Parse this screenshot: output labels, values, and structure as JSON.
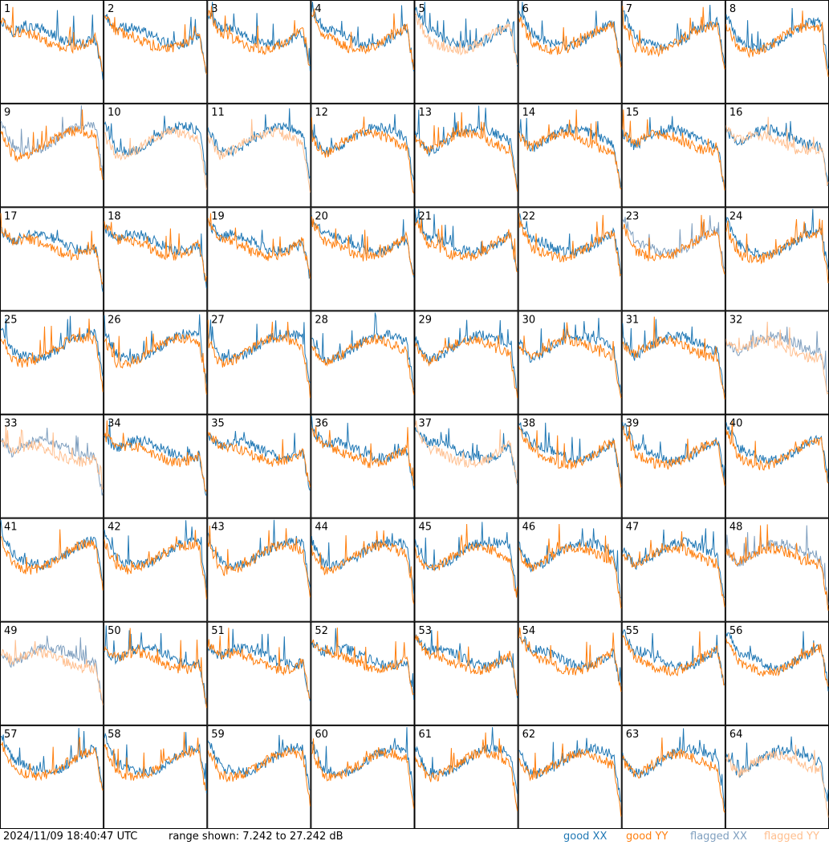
{
  "footer": {
    "timestamp": "2024/11/09 18:40:47 UTC",
    "range_text": "range shown: 7.242 to 27.242 dB"
  },
  "colors": {
    "good_xx": "#1f77b4",
    "good_yy": "#ff7f0e",
    "flagged_xx": "#7f9fbf",
    "flagged_yy": "#ffbf8f"
  },
  "chart_data": {
    "type": "line",
    "title": "",
    "xlabel": "",
    "ylabel": "",
    "ylim": [
      7.242,
      27.242
    ],
    "unit": "dB",
    "grid": false,
    "layout": "8x8 small multiples",
    "legend": {
      "placement": "bottom-right",
      "entries": [
        {
          "key": "good_xx",
          "label": "good XX"
        },
        {
          "key": "good_yy",
          "label": "good YY"
        },
        {
          "key": "flagged_xx",
          "label": "flagged XX"
        },
        {
          "key": "flagged_yy",
          "label": "flagged YY"
        }
      ]
    },
    "panel_labels": [
      "1",
      "2",
      "3",
      "4",
      "5",
      "6",
      "7",
      "8",
      "9",
      "10",
      "11",
      "12",
      "13",
      "14",
      "15",
      "16",
      "17",
      "18",
      "19",
      "20",
      "21",
      "22",
      "23",
      "24",
      "25",
      "26",
      "27",
      "28",
      "29",
      "30",
      "31",
      "32",
      "33",
      "34",
      "35",
      "36",
      "37",
      "38",
      "39",
      "40",
      "41",
      "42",
      "43",
      "44",
      "45",
      "46",
      "47",
      "48",
      "49",
      "50",
      "51",
      "52",
      "53",
      "54",
      "55",
      "56",
      "57",
      "58",
      "59",
      "60",
      "61",
      "62",
      "63",
      "64"
    ],
    "panel_series_status": {
      "xx": [
        "good",
        "good",
        "good",
        "good",
        "good",
        "good",
        "good",
        "good",
        "flagged",
        "good",
        "good",
        "good",
        "good",
        "good",
        "good",
        "good",
        "good",
        "good",
        "good",
        "good",
        "good",
        "good",
        "flagged",
        "good",
        "good",
        "good",
        "good",
        "good",
        "good",
        "good",
        "good",
        "flagged",
        "flagged",
        "good",
        "good",
        "good",
        "good",
        "good",
        "good",
        "good",
        "good",
        "good",
        "good",
        "good",
        "good",
        "good",
        "good",
        "flagged",
        "flagged",
        "good",
        "good",
        "good",
        "good",
        "good",
        "good",
        "good",
        "good",
        "good",
        "good",
        "good",
        "good",
        "good",
        "good",
        "good"
      ],
      "yy": [
        "good",
        "good",
        "good",
        "good",
        "flagged",
        "good",
        "good",
        "good",
        "good",
        "flagged",
        "flagged",
        "good",
        "good",
        "good",
        "good",
        "flagged",
        "good",
        "good",
        "good",
        "good",
        "good",
        "good",
        "good",
        "good",
        "good",
        "good",
        "good",
        "good",
        "good",
        "good",
        "good",
        "flagged",
        "flagged",
        "good",
        "good",
        "good",
        "flagged",
        "good",
        "good",
        "good",
        "good",
        "good",
        "good",
        "good",
        "good",
        "good",
        "good",
        "good",
        "flagged",
        "good",
        "good",
        "good",
        "good",
        "good",
        "good",
        "good",
        "good",
        "good",
        "good",
        "good",
        "good",
        "good",
        "good",
        "flagged"
      ]
    }
  }
}
